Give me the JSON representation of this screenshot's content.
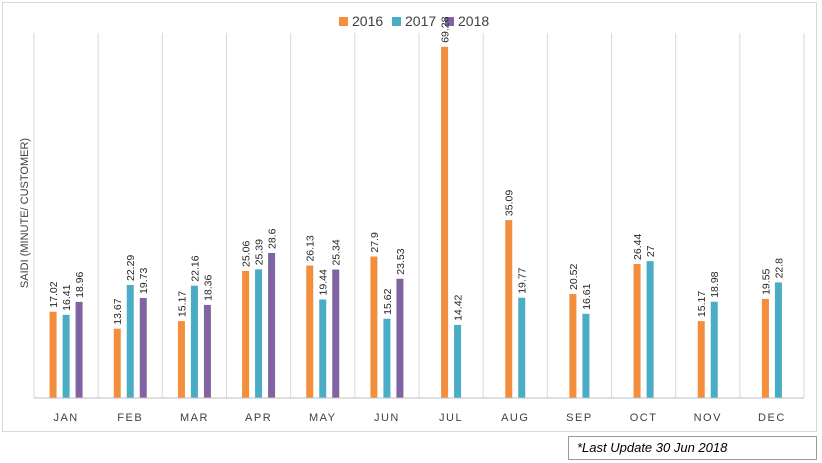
{
  "chart_data": {
    "type": "bar",
    "categories": [
      "JAN",
      "FEB",
      "MAR",
      "APR",
      "MAY",
      "JUN",
      "JUL",
      "AUG",
      "SEP",
      "OCT",
      "NOV",
      "DEC"
    ],
    "series": [
      {
        "name": "2016",
        "color": "#F28E3C",
        "values": [
          17.02,
          13.67,
          15.17,
          25.06,
          26.13,
          27.9,
          69.28,
          35.09,
          20.52,
          26.44,
          15.17,
          19.55
        ],
        "labels": [
          "17.02",
          "13.67",
          "15.17",
          "25.06",
          "26.13",
          "27.9",
          "69.28",
          "35.09",
          "20.52",
          "26.44",
          "15.17",
          "19.55"
        ]
      },
      {
        "name": "2017",
        "color": "#4BACC6",
        "values": [
          16.41,
          22.29,
          22.16,
          25.39,
          19.44,
          15.62,
          14.42,
          19.77,
          16.61,
          27,
          18.98,
          22.8
        ],
        "labels": [
          "16.41",
          "22.29",
          "22.16",
          "25.39",
          "19.44",
          "15.62",
          "14.42",
          "19.77",
          "16.61",
          "27",
          "18.98",
          "22.8"
        ]
      },
      {
        "name": "2018",
        "color": "#8064A2",
        "values": [
          18.96,
          19.73,
          18.36,
          28.6,
          25.34,
          23.53,
          null,
          null,
          null,
          null,
          null,
          null
        ],
        "labels": [
          "18.96",
          "19.73",
          "18.36",
          "28.6",
          "25.34",
          "23.53",
          "",
          "",
          "",
          "",
          "",
          ""
        ]
      }
    ],
    "ylabel": "SAIDI (MINUTE/ CUSTOMER)",
    "ylim": [
      0,
      72
    ],
    "grid": "vertical-category-separators",
    "legend": "top-center"
  },
  "footnote": "*Last Update 30 Jun 2018"
}
